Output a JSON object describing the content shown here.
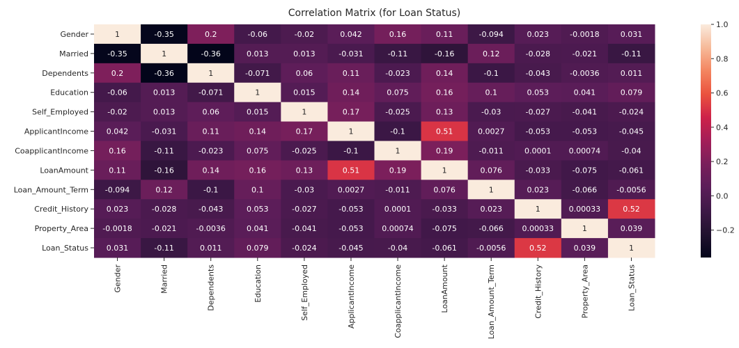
{
  "chart_data": {
    "type": "heatmap",
    "title": "Correlation Matrix (for Loan Status)",
    "labels": [
      "Gender",
      "Married",
      "Dependents",
      "Education",
      "Self_Employed",
      "ApplicantIncome",
      "CoapplicantIncome",
      "LoanAmount",
      "Loan_Amount_Term",
      "Credit_History",
      "Property_Area",
      "Loan_Status"
    ],
    "values": [
      [
        "1",
        "-0.35",
        "0.2",
        "-0.06",
        "-0.02",
        "0.042",
        "0.16",
        "0.11",
        "-0.094",
        "0.023",
        "-0.0018",
        "0.031"
      ],
      [
        "-0.35",
        "1",
        "-0.36",
        "0.013",
        "0.013",
        "-0.031",
        "-0.11",
        "-0.16",
        "0.12",
        "-0.028",
        "-0.021",
        "-0.11"
      ],
      [
        "0.2",
        "-0.36",
        "1",
        "-0.071",
        "0.06",
        "0.11",
        "-0.023",
        "0.14",
        "-0.1",
        "-0.043",
        "-0.0036",
        "0.011"
      ],
      [
        "-0.06",
        "0.013",
        "-0.071",
        "1",
        "0.015",
        "0.14",
        "0.075",
        "0.16",
        "0.1",
        "0.053",
        "0.041",
        "0.079"
      ],
      [
        "-0.02",
        "0.013",
        "0.06",
        "0.015",
        "1",
        "0.17",
        "-0.025",
        "0.13",
        "-0.03",
        "-0.027",
        "-0.041",
        "-0.024"
      ],
      [
        "0.042",
        "-0.031",
        "0.11",
        "0.14",
        "0.17",
        "1",
        "-0.1",
        "0.51",
        "0.0027",
        "-0.053",
        "-0.053",
        "-0.045"
      ],
      [
        "0.16",
        "-0.11",
        "-0.023",
        "0.075",
        "-0.025",
        "-0.1",
        "1",
        "0.19",
        "-0.011",
        "0.0001",
        "0.00074",
        "-0.04"
      ],
      [
        "0.11",
        "-0.16",
        "0.14",
        "0.16",
        "0.13",
        "0.51",
        "0.19",
        "1",
        "0.076",
        "-0.033",
        "-0.075",
        "-0.061"
      ],
      [
        "-0.094",
        "0.12",
        "-0.1",
        "0.1",
        "-0.03",
        "0.0027",
        "-0.011",
        "0.076",
        "1",
        "0.023",
        "-0.066",
        "-0.0056"
      ],
      [
        "0.023",
        "-0.028",
        "-0.043",
        "0.053",
        "-0.027",
        "-0.053",
        "0.0001",
        "-0.033",
        "0.023",
        "1",
        "0.00033",
        "0.52"
      ],
      [
        "-0.0018",
        "-0.021",
        "-0.0036",
        "0.041",
        "-0.041",
        "-0.053",
        "0.00074",
        "-0.075",
        "-0.066",
        "0.00033",
        "1",
        "0.039"
      ],
      [
        "0.031",
        "-0.11",
        "0.011",
        "0.079",
        "-0.024",
        "-0.045",
        "-0.04",
        "-0.061",
        "-0.0056",
        "0.52",
        "0.039",
        "1"
      ]
    ],
    "colorbar": {
      "min": -0.36,
      "max": 1.0,
      "ticks": [
        "1.0",
        "0.8",
        "0.6",
        "0.4",
        "0.2",
        "0.0",
        "-0.2"
      ]
    },
    "colormap": "rocket"
  }
}
